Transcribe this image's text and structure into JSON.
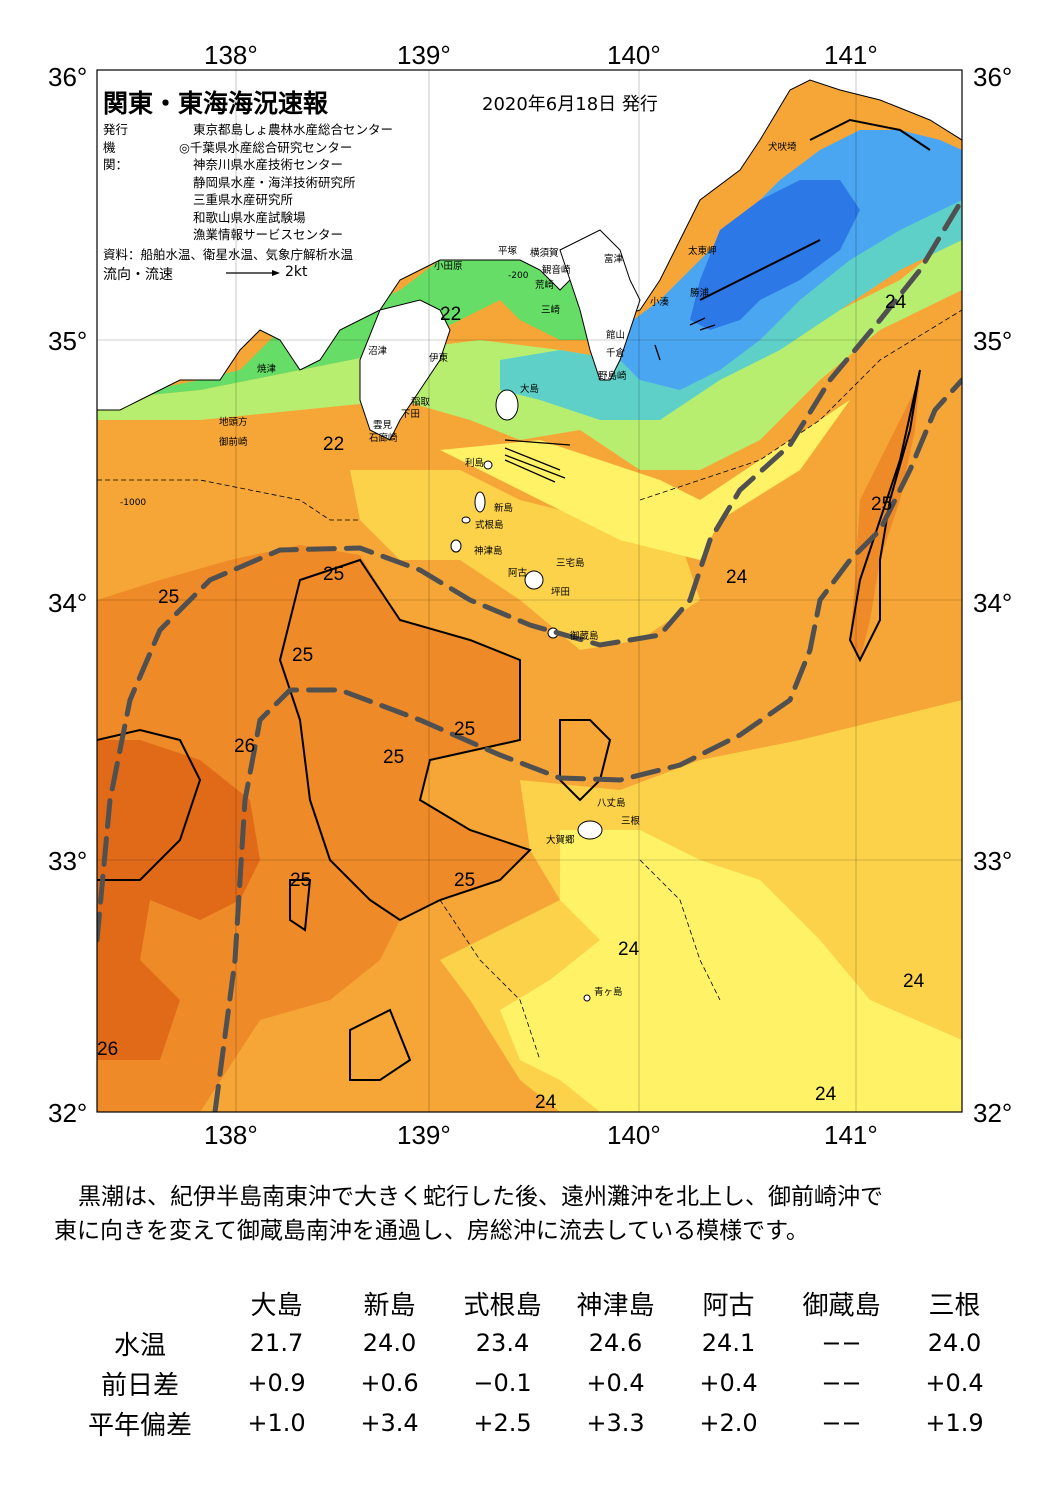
{
  "header": {
    "title": "関東・東海海況速報",
    "date": "2020年6月18日 発行",
    "agency_label": "発行機関：",
    "agencies": [
      "東京都島しょ農林水産総合センター",
      "◎千葉県水産総合研究センター",
      "神奈川県水産技術センター",
      "静岡県水産・海洋技術研究所",
      "三重県水産研究所",
      "和歌山県水産試験場",
      "漁業情報サービスセンター"
    ],
    "sources": "資料：船舶水温、衛星水温、気象庁解析水温",
    "flow_label": "流向・流速",
    "flow_scale": "2kt"
  },
  "axes": {
    "lon_labels": [
      "138°",
      "139°",
      "140°",
      "141°"
    ],
    "lat_labels_left": [
      "36°",
      "35°",
      "34°",
      "33°",
      "32°"
    ],
    "lat_labels_right": [
      "36°",
      "35°",
      "34°",
      "33°",
      "32°"
    ]
  },
  "map": {
    "place_names": [
      "犬吠埼",
      "太東岬",
      "勝浦",
      "小湊",
      "富津",
      "館山",
      "千倉",
      "野島崎",
      "横須賀",
      "観音崎",
      "荒崎",
      "三崎",
      "平塚",
      "小田原",
      "沼津",
      "伊東",
      "稲取",
      "下田",
      "雲見",
      "石廊崎",
      "焼津",
      "地頭方",
      "御前崎",
      "大島",
      "利島",
      "新島",
      "式根島",
      "神津島",
      "三宅島",
      "阿古",
      "坪田",
      "御蔵島",
      "八丈島",
      "三根",
      "大賀郷",
      "青ヶ島"
    ],
    "isotherm_labels": [
      "22",
      "22",
      "24",
      "24",
      "24",
      "24",
      "24",
      "24",
      "25",
      "25",
      "25",
      "25",
      "25",
      "25",
      "25",
      "25",
      "26",
      "26"
    ],
    "depth_labels": [
      "-200",
      "-1000"
    ],
    "colors": {
      "very_cold": "#2c78e6",
      "cold": "#4aa6f0",
      "cool": "#5fd0c8",
      "mild": "#66dd66",
      "warmish": "#b8ee70",
      "pale": "#fff266",
      "warm": "#fbd24a",
      "orange": "#f5a637",
      "hot": "#ee8a28",
      "hottest": "#e06a18",
      "land": "#ffffff",
      "kuroshio_path": "#505050"
    }
  },
  "summary": {
    "line1": "黒潮は、紀伊半島南東沖で大きく蛇行した後、遠州灘沖を北上し、御前崎沖で",
    "line2": "東に向きを変えて御蔵島南沖を通過し、房総沖に流去している模様です。"
  },
  "stats": {
    "columns": [
      "大島",
      "新島",
      "式根島",
      "神津島",
      "阿古",
      "御蔵島",
      "三根"
    ],
    "rows": [
      {
        "label": "水温",
        "values": [
          "21.7",
          "24.0",
          "23.4",
          "24.6",
          "24.1",
          "−−",
          "24.0"
        ]
      },
      {
        "label": "前日差",
        "values": [
          "+0.9",
          "+0.6",
          "−0.1",
          "+0.4",
          "+0.4",
          "−−",
          "+0.4"
        ]
      },
      {
        "label": "平年偏差",
        "values": [
          "+1.0",
          "+3.4",
          "+2.5",
          "+3.3",
          "+2.0",
          "−−",
          "+1.9"
        ]
      }
    ]
  }
}
